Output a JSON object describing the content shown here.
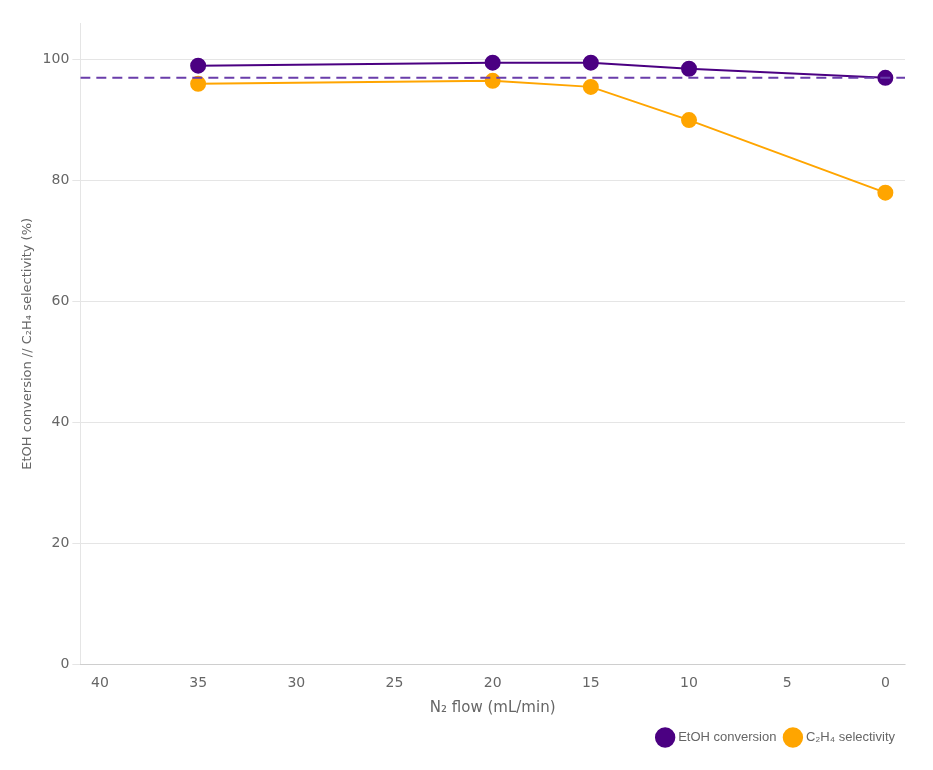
{
  "chart_data": {
    "type": "line",
    "x_label": "N₂ flow (mL/min)",
    "y_label": "EtOH conversion // C₂H₄ selectivity (%)",
    "x": [
      35,
      20,
      15,
      10,
      0
    ],
    "series": [
      {
        "name": "EtOH conversion",
        "color": "#4B0082",
        "marker": "circle",
        "values": [
          99.0,
          99.5,
          99.5,
          98.5,
          97.0
        ]
      },
      {
        "name": "C₂H₄ selectivity",
        "color": "#FFA500",
        "marker": "circle",
        "values": [
          96.0,
          96.5,
          95.5,
          90.0,
          78.0
        ]
      }
    ],
    "hlines": [
      {
        "value": 97.0,
        "color": "#6A3DAA",
        "line_style": "dashed"
      }
    ],
    "xlim": [
      41,
      -1
    ],
    "xticks": [
      40,
      35,
      30,
      25,
      20,
      15,
      10,
      5,
      0
    ],
    "ylim": [
      0,
      106
    ],
    "yticks": [
      0,
      20,
      40,
      60,
      80,
      100
    ],
    "grid": "y",
    "legend": "lower right"
  }
}
